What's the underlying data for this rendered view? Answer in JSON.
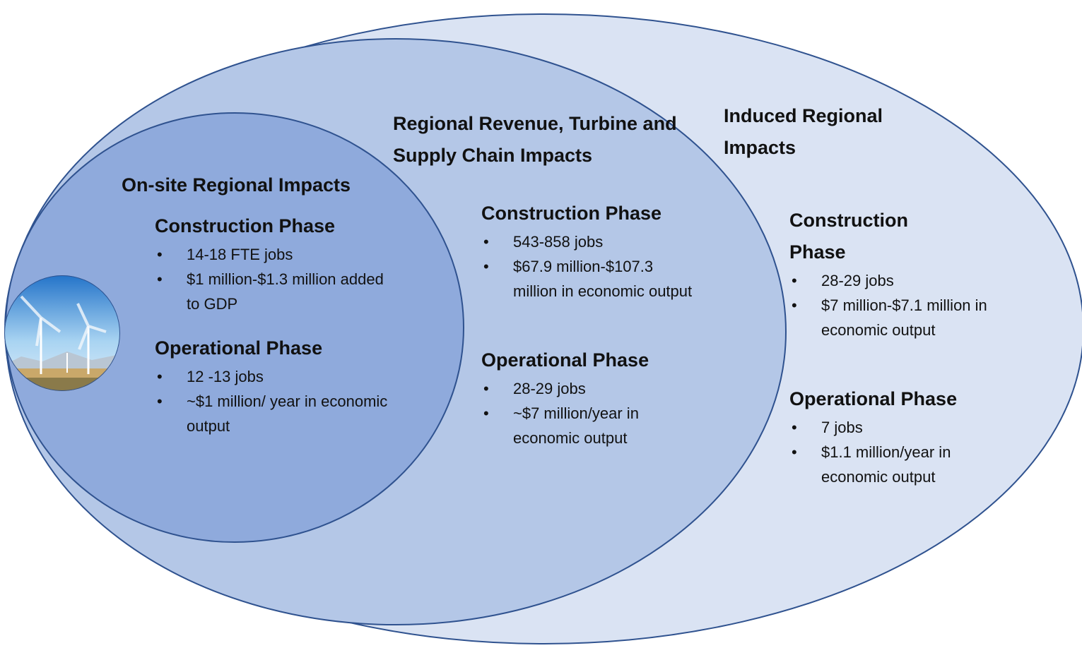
{
  "regions": [
    {
      "title": "On-site Regional Impacts",
      "sections": [
        {
          "heading": "Construction Phase",
          "bullets": [
            "14-18 FTE jobs",
            "$1 million-$1.3 million added to GDP"
          ]
        },
        {
          "heading": "Operational Phase",
          "bullets": [
            "12 -13 jobs",
            "~$1 million/ year in economic output"
          ]
        }
      ]
    },
    {
      "title": "Regional Revenue, Turbine and Supply Chain Impacts",
      "sections": [
        {
          "heading": "Construction Phase",
          "bullets": [
            "543-858 jobs",
            "$67.9 million-$107.3 million in economic output"
          ]
        },
        {
          "heading": "Operational Phase",
          "bullets": [
            "28-29 jobs",
            "~$7 million/year in economic output"
          ]
        }
      ]
    },
    {
      "title": "Induced Regional Impacts",
      "sections": [
        {
          "heading": "Construction Phase",
          "bullets": [
            "28-29 jobs",
            "$7 million-$7.1 million in economic output"
          ]
        },
        {
          "heading": "Operational Phase",
          "bullets": [
            "7 jobs",
            "$1.1 million/year in economic output"
          ]
        }
      ]
    }
  ]
}
